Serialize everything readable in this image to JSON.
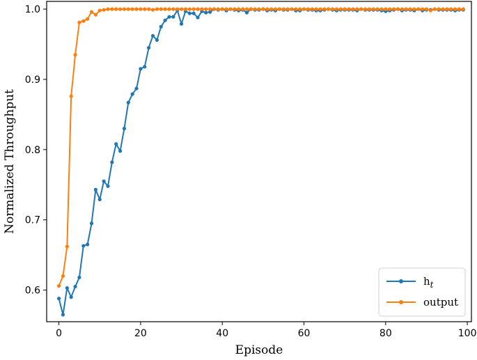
{
  "chart_data": {
    "type": "line",
    "title": "",
    "xlabel": "Episode",
    "ylabel": "Normalized Throughput",
    "xlim": [
      -3,
      101
    ],
    "ylim": [
      0.555,
      1.011
    ],
    "xticks": [
      0,
      20,
      40,
      60,
      80,
      100
    ],
    "yticks": [
      0.6,
      0.7,
      0.8,
      0.9,
      1.0
    ],
    "xtick_labels": [
      "0",
      "20",
      "40",
      "60",
      "80",
      "100"
    ],
    "ytick_labels": [
      "0.6",
      "0.7",
      "0.8",
      "0.9",
      "1.0"
    ],
    "grid": false,
    "legend_position": "lower-right",
    "series": [
      {
        "name_main": "h",
        "name_sub": "t",
        "color": "#1f77b4",
        "x": [
          0,
          1,
          2,
          3,
          4,
          5,
          6,
          7,
          8,
          9,
          10,
          11,
          12,
          13,
          14,
          15,
          16,
          17,
          18,
          19,
          20,
          21,
          22,
          23,
          24,
          25,
          26,
          27,
          28,
          29,
          30,
          31,
          32,
          33,
          34,
          35,
          36,
          37,
          38,
          39,
          40,
          41,
          42,
          43,
          44,
          45,
          46,
          47,
          48,
          49,
          50,
          51,
          52,
          53,
          54,
          55,
          56,
          57,
          58,
          59,
          60,
          61,
          62,
          63,
          64,
          65,
          66,
          67,
          68,
          69,
          70,
          71,
          72,
          73,
          74,
          75,
          76,
          77,
          78,
          79,
          80,
          81,
          82,
          83,
          84,
          85,
          86,
          87,
          88,
          89,
          90,
          91,
          92,
          93,
          94,
          95,
          96,
          97,
          98,
          99
        ],
        "y": [
          0.588,
          0.565,
          0.603,
          0.59,
          0.605,
          0.618,
          0.663,
          0.665,
          0.695,
          0.743,
          0.729,
          0.755,
          0.748,
          0.782,
          0.808,
          0.798,
          0.83,
          0.867,
          0.879,
          0.887,
          0.915,
          0.918,
          0.945,
          0.962,
          0.956,
          0.975,
          0.984,
          0.989,
          0.989,
          0.998,
          0.979,
          0.997,
          0.994,
          0.994,
          0.988,
          0.997,
          0.995,
          0.996,
          1.0,
          0.999,
          1.0,
          0.998,
          1.0,
          0.999,
          0.998,
          0.999,
          0.995,
          1.0,
          0.999,
          0.999,
          1.0,
          0.998,
          0.999,
          0.998,
          1.0,
          0.999,
          0.999,
          1.0,
          0.998,
          0.998,
          1.0,
          0.999,
          0.999,
          0.998,
          0.998,
          0.999,
          1.0,
          0.999,
          0.998,
          0.999,
          0.999,
          0.999,
          0.999,
          0.998,
          1.0,
          0.999,
          0.999,
          0.999,
          0.999,
          0.998,
          0.997,
          0.998,
          0.999,
          1.0,
          0.998,
          0.999,
          0.999,
          0.998,
          1.0,
          0.998,
          0.999,
          0.999,
          1.0,
          0.999,
          0.999,
          0.999,
          0.999,
          0.998,
          0.999,
          0.999
        ]
      },
      {
        "name_main": "output",
        "name_sub": "",
        "color": "#ff7f0e",
        "x": [
          0,
          1,
          2,
          3,
          4,
          5,
          6,
          7,
          8,
          9,
          10,
          11,
          12,
          13,
          14,
          15,
          16,
          17,
          18,
          19,
          20,
          21,
          22,
          23,
          24,
          25,
          26,
          27,
          28,
          29,
          30,
          31,
          32,
          33,
          34,
          35,
          36,
          37,
          38,
          39,
          40,
          41,
          42,
          43,
          44,
          45,
          46,
          47,
          48,
          49,
          50,
          51,
          52,
          53,
          54,
          55,
          56,
          57,
          58,
          59,
          60,
          61,
          62,
          63,
          64,
          65,
          66,
          67,
          68,
          69,
          70,
          71,
          72,
          73,
          74,
          75,
          76,
          77,
          78,
          79,
          80,
          81,
          82,
          83,
          84,
          85,
          86,
          87,
          88,
          89,
          90,
          91,
          92,
          93,
          94,
          95,
          96,
          97,
          98,
          99
        ],
        "y": [
          0.606,
          0.62,
          0.662,
          0.876,
          0.935,
          0.981,
          0.983,
          0.986,
          0.996,
          0.992,
          0.998,
          0.999,
          1.0,
          1.0,
          1.0,
          1.0,
          1.0,
          1.0,
          1.0,
          1.0,
          1.0,
          1.0,
          1.0,
          0.999,
          1.0,
          1.0,
          1.0,
          1.0,
          1.0,
          1.0,
          1.0,
          1.0,
          1.0,
          1.0,
          1.0,
          1.0,
          1.0,
          1.0,
          1.0,
          1.0,
          1.0,
          1.0,
          1.0,
          1.0,
          1.0,
          1.0,
          1.0,
          1.0,
          1.0,
          1.0,
          1.0,
          1.0,
          1.0,
          1.0,
          1.0,
          1.0,
          1.0,
          1.0,
          1.0,
          1.0,
          1.0,
          1.0,
          1.0,
          1.0,
          1.0,
          1.0,
          1.0,
          1.0,
          1.0,
          1.0,
          1.0,
          1.0,
          1.0,
          1.0,
          1.0,
          1.0,
          1.0,
          1.0,
          1.0,
          1.0,
          1.0,
          1.0,
          1.0,
          1.0,
          1.0,
          1.0,
          1.0,
          1.0,
          1.0,
          1.0,
          1.0,
          0.998,
          1.0,
          1.0,
          1.0,
          1.0,
          1.0,
          1.0,
          1.0,
          1.0
        ]
      }
    ]
  }
}
